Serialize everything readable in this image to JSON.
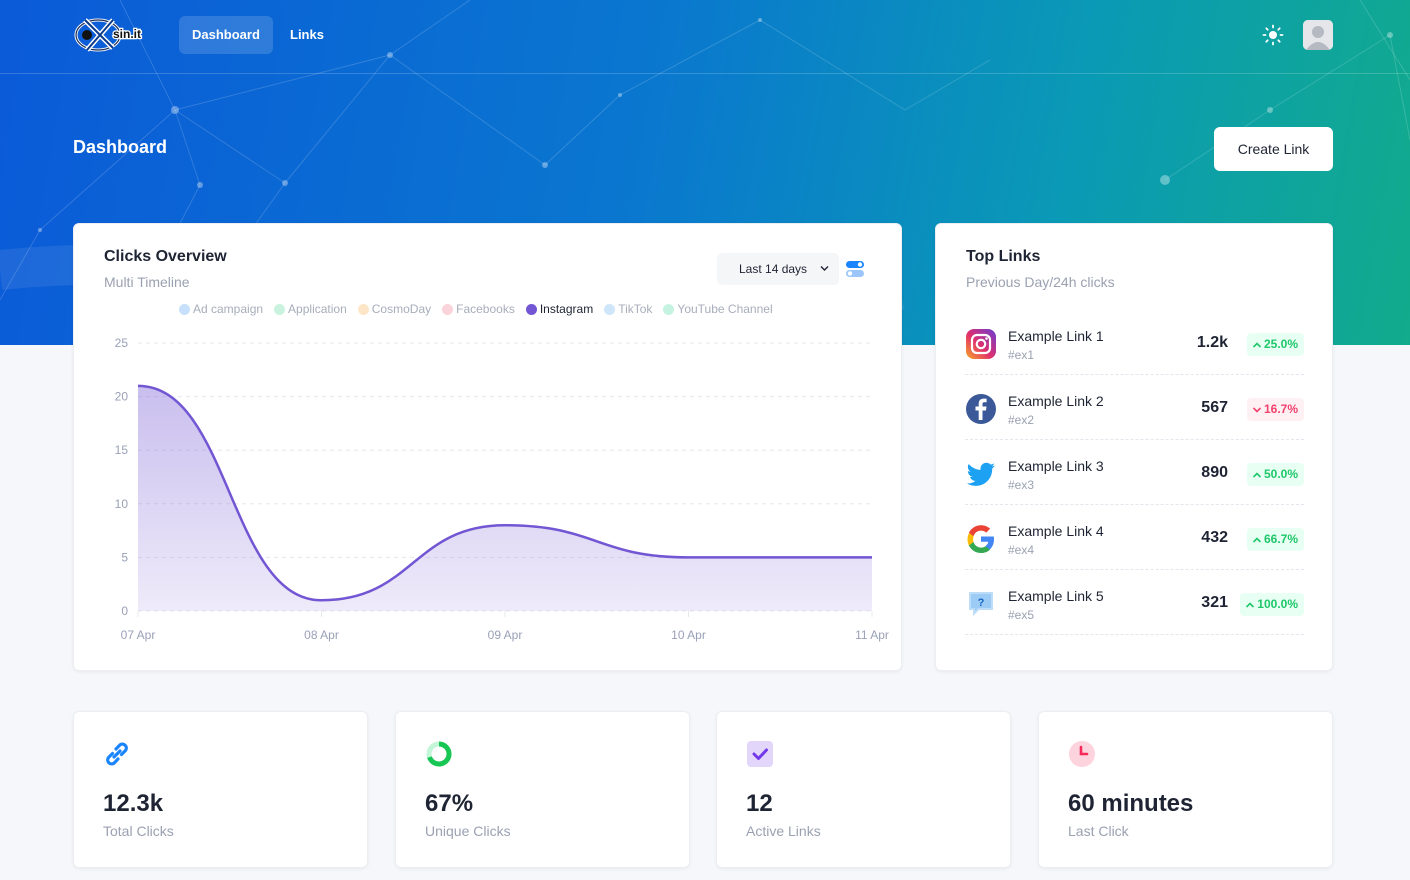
{
  "nav": {
    "logo_text": "sin.it",
    "items": [
      {
        "label": "Dashboard",
        "active": true
      },
      {
        "label": "Links",
        "active": false
      }
    ],
    "theme_icon": "sun-icon",
    "avatar_icon": "user-avatar"
  },
  "page": {
    "title": "Dashboard",
    "create_button": "Create Link"
  },
  "clicks_overview": {
    "title": "Clicks Overview",
    "subtitle": "Multi Timeline",
    "range": "Last 14 days",
    "legend": [
      {
        "label": "Ad campaign",
        "color": "#c7e0fb",
        "active": false
      },
      {
        "label": "Application",
        "color": "#c9f3df",
        "active": false
      },
      {
        "label": "CosmoDay",
        "color": "#fde6c7",
        "active": false
      },
      {
        "label": "Facebooks",
        "color": "#fbd3da",
        "active": false
      },
      {
        "label": "Instagram",
        "color": "#7256d3",
        "active": true
      },
      {
        "label": "TikTok",
        "color": "#cfe5fa",
        "active": false
      },
      {
        "label": "YouTube Channel",
        "color": "#c6f3e1",
        "active": false
      }
    ]
  },
  "chart_data": {
    "type": "area",
    "title": "Clicks Overview",
    "subtitle": "Multi Timeline",
    "categories": [
      "07 Apr",
      "08 Apr",
      "09 Apr",
      "10 Apr",
      "11 Apr"
    ],
    "series": [
      {
        "name": "Instagram",
        "values": [
          21,
          1,
          8,
          5,
          5
        ],
        "color": "#7256d3"
      }
    ],
    "ylim": [
      0,
      25
    ],
    "yticks": [
      0,
      5,
      10,
      15,
      20,
      25
    ],
    "grid": true,
    "legend_position": "top"
  },
  "top_links": {
    "title": "Top Links",
    "subtitle": "Previous Day/24h clicks",
    "items": [
      {
        "icon": "instagram-icon",
        "name": "Example Link 1",
        "tag": "#ex1",
        "count": "1.2k",
        "change": "25.0%",
        "direction": "up"
      },
      {
        "icon": "facebook-icon",
        "name": "Example Link 2",
        "tag": "#ex2",
        "count": "567",
        "change": "16.7%",
        "direction": "down"
      },
      {
        "icon": "twitter-icon",
        "name": "Example Link 3",
        "tag": "#ex3",
        "count": "890",
        "change": "50.0%",
        "direction": "up"
      },
      {
        "icon": "google-icon",
        "name": "Example Link 4",
        "tag": "#ex4",
        "count": "432",
        "change": "66.7%",
        "direction": "up"
      },
      {
        "icon": "question-chat-icon",
        "name": "Example Link 5",
        "tag": "#ex5",
        "count": "321",
        "change": "100.0%",
        "direction": "up"
      }
    ]
  },
  "stats": [
    {
      "icon": "link-icon",
      "value": "12.3k",
      "label": "Total Clicks",
      "color": "#1b84ff"
    },
    {
      "icon": "donut-icon",
      "value": "67%",
      "label": "Unique Clicks",
      "color": "#17c653"
    },
    {
      "icon": "check-square-icon",
      "value": "12",
      "label": "Active Links",
      "color": "#7239ea"
    },
    {
      "icon": "clock-icon",
      "value": "60 minutes",
      "label": "Last Click",
      "color": "#f8285a"
    }
  ]
}
